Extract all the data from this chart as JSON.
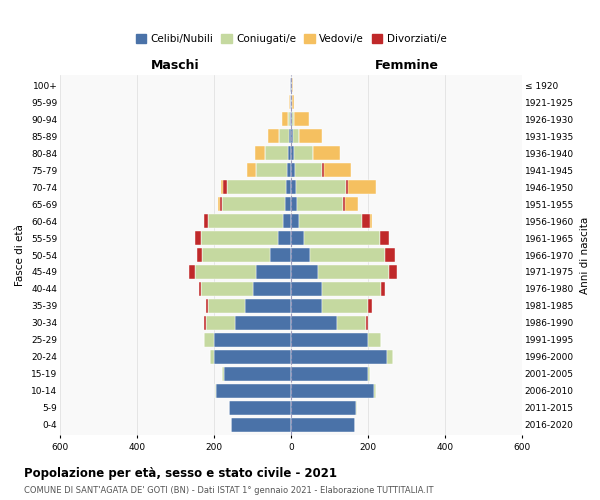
{
  "age_groups": [
    "0-4",
    "5-9",
    "10-14",
    "15-19",
    "20-24",
    "25-29",
    "30-34",
    "35-39",
    "40-44",
    "45-49",
    "50-54",
    "55-59",
    "60-64",
    "65-69",
    "70-74",
    "75-79",
    "80-84",
    "85-89",
    "90-94",
    "95-99",
    "100+"
  ],
  "birth_years": [
    "2016-2020",
    "2011-2015",
    "2006-2010",
    "2001-2005",
    "1996-2000",
    "1991-1995",
    "1986-1990",
    "1981-1985",
    "1976-1980",
    "1971-1975",
    "1966-1970",
    "1961-1965",
    "1956-1960",
    "1951-1955",
    "1946-1950",
    "1941-1945",
    "1936-1940",
    "1931-1935",
    "1926-1930",
    "1921-1925",
    "≤ 1920"
  ],
  "colors": {
    "celibi": "#4a72a8",
    "coniugati": "#c5d9a0",
    "vedovi": "#f5c060",
    "divorziati": "#c0292a"
  },
  "maschi": {
    "celibi": [
      155,
      160,
      195,
      175,
      200,
      200,
      145,
      120,
      100,
      90,
      55,
      35,
      20,
      15,
      12,
      10,
      8,
      5,
      3,
      2,
      2
    ],
    "coniugati": [
      0,
      2,
      2,
      5,
      10,
      25,
      75,
      95,
      135,
      160,
      175,
      200,
      195,
      165,
      155,
      80,
      60,
      25,
      5,
      0,
      0
    ],
    "vedovi": [
      0,
      0,
      0,
      0,
      0,
      0,
      0,
      0,
      0,
      5,
      5,
      5,
      5,
      10,
      15,
      25,
      25,
      30,
      15,
      2,
      0
    ],
    "divorziati": [
      0,
      0,
      0,
      0,
      0,
      0,
      5,
      5,
      5,
      15,
      15,
      15,
      12,
      5,
      10,
      0,
      0,
      0,
      0,
      0,
      0
    ]
  },
  "femmine": {
    "nubili": [
      165,
      170,
      215,
      200,
      250,
      200,
      120,
      80,
      80,
      70,
      50,
      35,
      20,
      15,
      12,
      10,
      8,
      5,
      3,
      2,
      2
    ],
    "coniugati": [
      0,
      2,
      5,
      5,
      15,
      35,
      75,
      120,
      155,
      185,
      195,
      195,
      165,
      120,
      130,
      70,
      50,
      15,
      5,
      0,
      0
    ],
    "vedovi": [
      0,
      0,
      0,
      0,
      0,
      0,
      0,
      0,
      0,
      5,
      10,
      15,
      25,
      40,
      80,
      75,
      70,
      60,
      40,
      5,
      2
    ],
    "divorziati": [
      0,
      0,
      0,
      0,
      0,
      0,
      5,
      10,
      10,
      20,
      25,
      25,
      20,
      5,
      5,
      5,
      0,
      0,
      0,
      0,
      0
    ]
  },
  "xlim": 600,
  "title": "Popolazione per età, sesso e stato civile - 2021",
  "subtitle": "COMUNE DI SANT'AGATA DE' GOTI (BN) - Dati ISTAT 1° gennaio 2021 - Elaborazione TUTTITALIA.IT",
  "ylabel_left": "Fasce di età",
  "ylabel_right": "Anni di nascita",
  "xlabel_maschi": "Maschi",
  "xlabel_femmine": "Femmine",
  "legend_labels": [
    "Celibi/Nubili",
    "Coniugati/e",
    "Vedovi/e",
    "Divorziati/e"
  ],
  "bg_color": "#f9f9f9",
  "bar_height": 0.85
}
